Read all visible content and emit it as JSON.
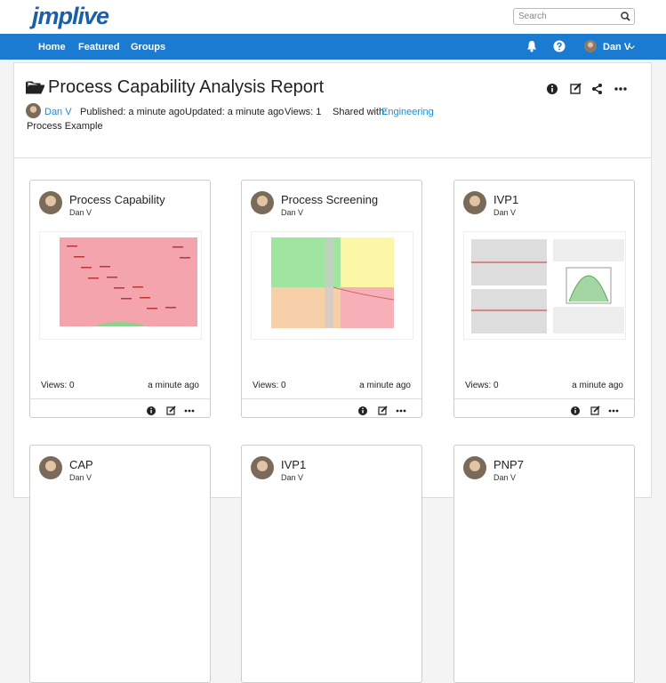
{
  "header": {
    "logo": "jmplive",
    "search_placeholder": "Search"
  },
  "nav": {
    "items": [
      "Home",
      "Featured",
      "Groups"
    ],
    "user": "Dan V"
  },
  "report": {
    "title": "Process Capability Analysis Report",
    "author": "Dan V",
    "published": "Published: a minute ago",
    "updated": "Updated: a minute ago",
    "views": "Views: 1",
    "shared_label": "Shared with:",
    "shared_group": "Engineering",
    "description": "Process Example"
  },
  "cards": [
    {
      "title": "Process Capability",
      "author": "Dan V",
      "views": "Views: 0",
      "time": "a minute ago"
    },
    {
      "title": "Process Screening",
      "author": "Dan V",
      "views": "Views: 0",
      "time": "a minute ago"
    },
    {
      "title": "IVP1",
      "author": "Dan V",
      "views": "Views: 0",
      "time": "a minute ago"
    },
    {
      "title": "CAP",
      "author": "Dan V"
    },
    {
      "title": "IVP1",
      "author": "Dan V"
    },
    {
      "title": "PNP7",
      "author": "Dan V"
    }
  ]
}
